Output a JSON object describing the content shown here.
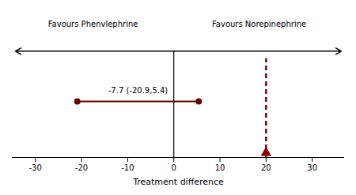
{
  "chart_data": {
    "type": "interval",
    "xlabel": "Treatment difference",
    "xlim": [
      -35,
      37
    ],
    "xticks": [
      -30,
      -20,
      -10,
      0,
      10,
      20,
      30
    ],
    "tick_labels": "x",
    "intervals": [
      {
        "low": -20.9,
        "high": 5.4,
        "label": "-7.7 (-20.9,5.4)",
        "color": "#6B0000"
      }
    ],
    "margin": {
      "value": 20,
      "color": "#8B0000",
      "line_style": "dashed"
    },
    "annotations": [
      "Favours Phenvlephrine",
      "Favours Norepinephrine"
    ]
  }
}
